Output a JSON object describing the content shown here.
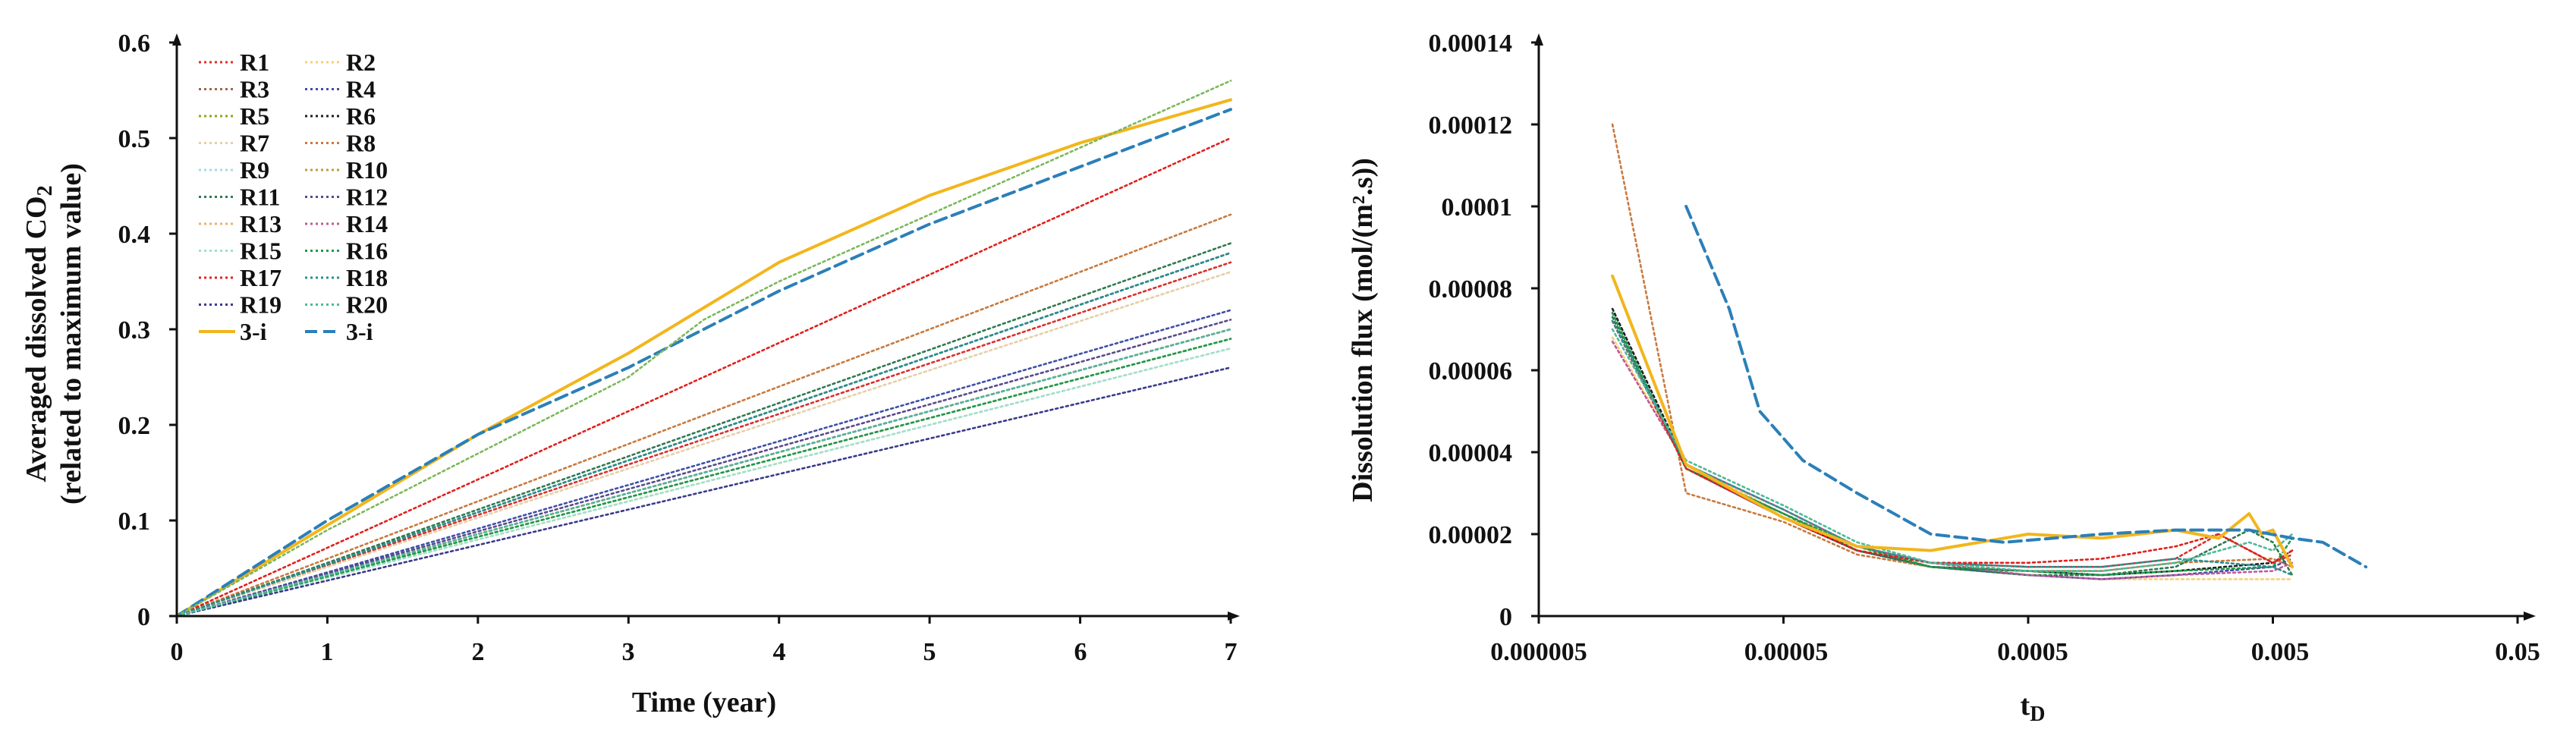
{
  "chart_data": [
    {
      "type": "line",
      "title": "",
      "xlabel": "Time (year)",
      "ylabel_line1": "Averaged dissolved CO",
      "ylabel_sub": "2",
      "ylabel_line2": "(related to maximum value)",
      "xlim": [
        0,
        7
      ],
      "ylim": [
        0,
        0.6
      ],
      "xticks": [
        0,
        1,
        2,
        3,
        4,
        5,
        6,
        7
      ],
      "xtick_labels": [
        "0",
        "1",
        "2",
        "3",
        "4",
        "5",
        "6",
        "7"
      ],
      "yticks": [
        0,
        0.1,
        0.2,
        0.3,
        0.4,
        0.5,
        0.6
      ],
      "ytick_labels": [
        "0",
        "0.1",
        "0.2",
        "0.3",
        "0.4",
        "0.5",
        "0.6"
      ],
      "grid": false,
      "legend_position": "top-left",
      "series": [
        {
          "name": "R1",
          "color": "#d9302a",
          "dash": "dotted",
          "x": [
            0,
            7
          ],
          "y": [
            0,
            0.37
          ]
        },
        {
          "name": "R2",
          "color": "#f2d27a",
          "dash": "dotted",
          "x": [
            0,
            7
          ],
          "y": [
            0,
            0.28
          ]
        },
        {
          "name": "R3",
          "color": "#9b6a4b",
          "dash": "dotted",
          "x": [
            0,
            7
          ],
          "y": [
            0,
            0.3
          ]
        },
        {
          "name": "R4",
          "color": "#3f4fa8",
          "dash": "dotted",
          "x": [
            0,
            7
          ],
          "y": [
            0,
            0.32
          ]
        },
        {
          "name": "R5",
          "color": "#8aa61c",
          "dash": "dotted",
          "x": [
            0,
            7
          ],
          "y": [
            0,
            0.29
          ]
        },
        {
          "name": "R6",
          "color": "#202020",
          "dash": "dotted",
          "x": [
            0,
            7
          ],
          "y": [
            0,
            0.38
          ]
        },
        {
          "name": "R7",
          "color": "#e6cfa6",
          "dash": "dotted",
          "x": [
            0,
            7
          ],
          "y": [
            0,
            0.36
          ]
        },
        {
          "name": "R8",
          "color": "#c8793e",
          "dash": "dotted",
          "x": [
            0,
            7
          ],
          "y": [
            0,
            0.42
          ]
        },
        {
          "name": "R9",
          "color": "#a8d8e8",
          "dash": "dotted",
          "x": [
            0,
            7
          ],
          "y": [
            0,
            0.29
          ]
        },
        {
          "name": "R10",
          "color": "#b8a040",
          "dash": "dotted",
          "x": [
            0,
            7
          ],
          "y": [
            0,
            0.3
          ]
        },
        {
          "name": "R11",
          "color": "#2f7a4f",
          "dash": "dotted",
          "x": [
            0,
            7
          ],
          "y": [
            0,
            0.39
          ]
        },
        {
          "name": "R12",
          "color": "#5a4a8a",
          "dash": "dotted",
          "x": [
            0,
            7
          ],
          "y": [
            0,
            0.31
          ]
        },
        {
          "name": "R13",
          "color": "#e8b46a",
          "dash": "dotted",
          "x": [
            0,
            7
          ],
          "y": [
            0,
            0.29
          ]
        },
        {
          "name": "R14",
          "color": "#c05a98",
          "dash": "dotted",
          "x": [
            0,
            7
          ],
          "y": [
            0,
            0.3
          ]
        },
        {
          "name": "R15",
          "color": "#9fe0cf",
          "dash": "dotted",
          "x": [
            0,
            7
          ],
          "y": [
            0,
            0.28
          ]
        },
        {
          "name": "R16",
          "color": "#1d9a4c",
          "dash": "dotted",
          "x": [
            0,
            7
          ],
          "y": [
            0,
            0.29
          ]
        },
        {
          "name": "R17",
          "color": "#e0201c",
          "dash": "dotted",
          "x": [
            0,
            7
          ],
          "y": [
            0,
            0.5
          ]
        },
        {
          "name": "R18",
          "color": "#2a8f8f",
          "dash": "dotted",
          "x": [
            0,
            7
          ],
          "y": [
            0,
            0.38
          ]
        },
        {
          "name": "R19",
          "color": "#3a3a8a",
          "dash": "dotted",
          "x": [
            0,
            7
          ],
          "y": [
            0,
            0.26
          ]
        },
        {
          "name": "R20",
          "color": "#4fb89a",
          "dash": "dotted",
          "x": [
            0,
            7
          ],
          "y": [
            0,
            0.3
          ]
        },
        {
          "name": "3-i",
          "color": "#f2b61c",
          "dash": "solid",
          "x": [
            0,
            1,
            2,
            3,
            4,
            5,
            6,
            7
          ],
          "y": [
            0,
            0.095,
            0.19,
            0.275,
            0.37,
            0.44,
            0.495,
            0.54
          ]
        },
        {
          "name": "3-i",
          "color": "#2b7fb8",
          "dash": "dashed",
          "x": [
            0,
            1,
            2,
            3,
            4,
            5,
            6,
            7
          ],
          "y": [
            0,
            0.1,
            0.19,
            0.26,
            0.34,
            0.41,
            0.47,
            0.53
          ]
        },
        {
          "name": "",
          "color": "#7cb85a",
          "dash": "dotted",
          "x": [
            0,
            1,
            2,
            3,
            3.5,
            4,
            5,
            6,
            7
          ],
          "y": [
            0,
            0.09,
            0.17,
            0.25,
            0.31,
            0.35,
            0.42,
            0.49,
            0.56
          ]
        }
      ]
    },
    {
      "type": "line",
      "title": "",
      "xlabel_main": "t",
      "xlabel_sub": "D",
      "ylabel": "Dissolution flux (mol/(m².s))",
      "xscale": "log",
      "xlim": [
        5e-06,
        0.05
      ],
      "ylim": [
        0,
        0.00014
      ],
      "xticks": [
        5e-06,
        5e-05,
        0.0005,
        0.005,
        0.05
      ],
      "xtick_labels": [
        "0.000005",
        "0.00005",
        "0.0005",
        "0.005",
        "0.05"
      ],
      "yticks": [
        0,
        2e-05,
        4e-05,
        6e-05,
        8e-05,
        0.0001,
        0.00012,
        0.00014
      ],
      "ytick_labels": [
        "0",
        "0.00002",
        "0.00004",
        "0.00006",
        "0.00008",
        "0.0001",
        "0.00012",
        "0.00014"
      ],
      "grid": false,
      "series": [
        {
          "name": "R1",
          "color": "#d9302a",
          "dash": "dotted",
          "x": [
            1e-05,
            2e-05,
            5e-05,
            0.0001,
            0.0002,
            0.0005,
            0.001,
            0.002,
            0.003,
            0.005,
            0.006
          ],
          "y": [
            7.2e-05,
            3.6e-05,
            2.4e-05,
            1.6e-05,
            1.3e-05,
            1.2e-05,
            1.2e-05,
            1.4e-05,
            2e-05,
            1.3e-05,
            1.5e-05
          ]
        },
        {
          "name": "R2",
          "color": "#f2d27a",
          "dash": "dotted",
          "x": [
            1e-05,
            2e-05,
            5e-05,
            0.0001,
            0.0002,
            0.0005,
            0.001,
            0.002,
            0.005,
            0.006
          ],
          "y": [
            6.8e-05,
            3.7e-05,
            2.5e-05,
            1.7e-05,
            1.2e-05,
            1e-05,
            9e-06,
            9e-06,
            9e-06,
            9e-06
          ]
        },
        {
          "name": "R4",
          "color": "#3f4fa8",
          "dash": "dotted",
          "x": [
            1e-05,
            2e-05,
            5e-05,
            0.0001,
            0.0002,
            0.0005,
            0.001,
            0.002,
            0.005,
            0.006
          ],
          "y": [
            7.4e-05,
            3.6e-05,
            2.4e-05,
            1.6e-05,
            1.2e-05,
            1e-05,
            9e-06,
            1e-05,
            1.2e-05,
            1.4e-05
          ]
        },
        {
          "name": "R6",
          "color": "#202020",
          "dash": "dotted",
          "x": [
            1e-05,
            2e-05,
            5e-05,
            0.0001,
            0.0002,
            0.0005,
            0.001,
            0.002,
            0.005,
            0.006
          ],
          "y": [
            7.5e-05,
            3.7e-05,
            2.4e-05,
            1.6e-05,
            1.2e-05,
            1.1e-05,
            1e-05,
            1.1e-05,
            1.3e-05,
            1.6e-05
          ]
        },
        {
          "name": "R8",
          "color": "#c8793e",
          "dash": "dotted",
          "x": [
            1e-05,
            2e-05,
            5e-05,
            0.0001,
            0.0002,
            0.0005,
            0.001,
            0.002,
            0.005,
            0.006
          ],
          "y": [
            0.00012,
            3e-05,
            2.3e-05,
            1.5e-05,
            1.2e-05,
            1.1e-05,
            1.1e-05,
            1.3e-05,
            1.4e-05,
            1.2e-05
          ]
        },
        {
          "name": "R11",
          "color": "#2f7a4f",
          "dash": "dotted",
          "x": [
            1e-05,
            2e-05,
            5e-05,
            0.0001,
            0.0002,
            0.0005,
            0.001,
            0.002,
            0.004,
            0.005,
            0.006
          ],
          "y": [
            7.3e-05,
            3.6e-05,
            2.5e-05,
            1.6e-05,
            1.2e-05,
            1e-05,
            1e-05,
            1.2e-05,
            2.1e-05,
            1.8e-05,
            1e-05
          ]
        },
        {
          "name": "R14",
          "color": "#c05a98",
          "dash": "dotted",
          "x": [
            1e-05,
            2e-05,
            5e-05,
            0.0001,
            0.0002,
            0.0005,
            0.001,
            0.002,
            0.005,
            0.006
          ],
          "y": [
            6.7e-05,
            3.7e-05,
            2.6e-05,
            1.7e-05,
            1.3e-05,
            1e-05,
            9e-06,
            1e-05,
            1.1e-05,
            1.3e-05
          ]
        },
        {
          "name": "R16",
          "color": "#1d9a4c",
          "dash": "dotted",
          "x": [
            1e-05,
            2e-05,
            5e-05,
            0.0001,
            0.0002,
            0.0005,
            0.001,
            0.002,
            0.005,
            0.006
          ],
          "y": [
            7.4e-05,
            3.6e-05,
            2.5e-05,
            1.7e-05,
            1.2e-05,
            1.1e-05,
            1e-05,
            1.1e-05,
            1.2e-05,
            1.9e-05
          ]
        },
        {
          "name": "R17",
          "color": "#e0201c",
          "dash": "dotted",
          "x": [
            1e-05,
            2e-05,
            5e-05,
            0.0001,
            0.0002,
            0.0005,
            0.001,
            0.002,
            0.003,
            0.005,
            0.006
          ],
          "y": [
            7.2e-05,
            3.6e-05,
            2.4e-05,
            1.6e-05,
            1.3e-05,
            1.3e-05,
            1.4e-05,
            1.7e-05,
            2e-05,
            1.3e-05,
            1.6e-05
          ]
        },
        {
          "name": "R18",
          "color": "#2a8f8f",
          "dash": "dotted",
          "x": [
            1e-05,
            2e-05,
            5e-05,
            0.0001,
            0.0002,
            0.0005,
            0.001,
            0.002,
            0.005,
            0.006
          ],
          "y": [
            7.2e-05,
            3.7e-05,
            2.6e-05,
            1.7e-05,
            1.3e-05,
            1.2e-05,
            1.2e-05,
            1.4e-05,
            1.2e-05,
            1e-05
          ]
        },
        {
          "name": "R20",
          "color": "#4fb89a",
          "dash": "dotted",
          "x": [
            1e-05,
            2e-05,
            5e-05,
            0.0001,
            0.0002,
            0.0005,
            0.001,
            0.002,
            0.004,
            0.005,
            0.006
          ],
          "y": [
            7e-05,
            3.8e-05,
            2.7e-05,
            1.8e-05,
            1.3e-05,
            1.1e-05,
            1.1e-05,
            1.3e-05,
            1.8e-05,
            1.6e-05,
            2e-05
          ]
        },
        {
          "name": "3-i",
          "color": "#f2b61c",
          "dash": "solid",
          "x": [
            1e-05,
            2e-05,
            5e-05,
            0.0001,
            0.0002,
            0.0005,
            0.001,
            0.002,
            0.003,
            0.004,
            0.0045,
            0.005,
            0.006
          ],
          "y": [
            8.3e-05,
            3.7e-05,
            2.4e-05,
            1.7e-05,
            1.6e-05,
            2e-05,
            1.9e-05,
            2.1e-05,
            1.9e-05,
            2.5e-05,
            2e-05,
            2.1e-05,
            1.2e-05
          ]
        },
        {
          "name": "3-i",
          "color": "#2b7fb8",
          "dash": "dashed",
          "x": [
            2e-05,
            3e-05,
            4e-05,
            6e-05,
            0.0001,
            0.0002,
            0.0004,
            0.001,
            0.002,
            0.004,
            0.006,
            0.008,
            0.012
          ],
          "y": [
            0.0001,
            7.5e-05,
            5e-05,
            3.8e-05,
            3e-05,
            2e-05,
            1.8e-05,
            2e-05,
            2.1e-05,
            2.1e-05,
            1.9e-05,
            1.8e-05,
            1.2e-05
          ]
        }
      ]
    }
  ]
}
